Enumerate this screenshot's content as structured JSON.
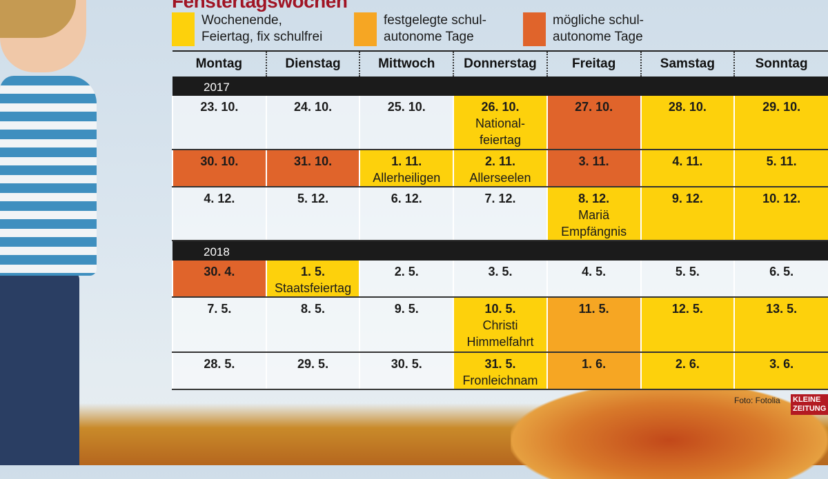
{
  "title": "Fenstertagswochen",
  "legend": [
    {
      "label": "Wochenende,\nFeiertag, fix schulfrei",
      "color": "#fdd10c"
    },
    {
      "label": "festgelegte schul-\nautonome Tage",
      "color": "#f6a623"
    },
    {
      "label": "mögliche schul-\nautonome Tage",
      "color": "#e0642b"
    }
  ],
  "days": [
    "Montag",
    "Dienstag",
    "Mittwoch",
    "Donnerstag",
    "Freitag",
    "Samstag",
    "Sonntag"
  ],
  "years": [
    {
      "year": "2017",
      "weeks": [
        [
          {
            "d": "23. 10."
          },
          {
            "d": "24. 10."
          },
          {
            "d": "25. 10."
          },
          {
            "d": "26. 10.",
            "note": "National-\nfeiertag",
            "c": "y"
          },
          {
            "d": "27. 10.",
            "c": "d"
          },
          {
            "d": "28. 10.",
            "c": "y"
          },
          {
            "d": "29. 10.",
            "c": "y"
          }
        ],
        [
          {
            "d": "30. 10.",
            "c": "d"
          },
          {
            "d": "31. 10.",
            "c": "d"
          },
          {
            "d": "1. 11.",
            "note": "Allerheiligen",
            "c": "y"
          },
          {
            "d": "2. 11.",
            "note": "Allerseelen",
            "c": "y"
          },
          {
            "d": "3. 11.",
            "c": "d"
          },
          {
            "d": "4. 11.",
            "c": "y"
          },
          {
            "d": "5. 11.",
            "c": "y"
          }
        ],
        [
          {
            "d": "4. 12."
          },
          {
            "d": "5. 12."
          },
          {
            "d": "6. 12."
          },
          {
            "d": "7. 12."
          },
          {
            "d": "8. 12.",
            "note": "Mariä\nEmpfängnis",
            "c": "y"
          },
          {
            "d": "9. 12.",
            "c": "y"
          },
          {
            "d": "10. 12.",
            "c": "y"
          }
        ]
      ]
    },
    {
      "year": "2018",
      "weeks": [
        [
          {
            "d": "30. 4.",
            "c": "d"
          },
          {
            "d": "1. 5.",
            "note": "Staatsfeiertag",
            "c": "y"
          },
          {
            "d": "2. 5."
          },
          {
            "d": "3. 5."
          },
          {
            "d": "4. 5."
          },
          {
            "d": "5. 5."
          },
          {
            "d": "6. 5."
          }
        ],
        [
          {
            "d": "7. 5."
          },
          {
            "d": "8. 5."
          },
          {
            "d": "9. 5."
          },
          {
            "d": "10. 5.",
            "note": "Christi\nHimmelfahrt",
            "c": "y"
          },
          {
            "d": "11. 5.",
            "c": "o"
          },
          {
            "d": "12. 5.",
            "c": "y"
          },
          {
            "d": "13. 5.",
            "c": "y"
          }
        ],
        [
          {
            "d": "28. 5."
          },
          {
            "d": "29. 5."
          },
          {
            "d": "30. 5."
          },
          {
            "d": "31. 5.",
            "note": "Fronleichnam",
            "c": "y"
          },
          {
            "d": "1. 6.",
            "c": "o"
          },
          {
            "d": "2. 6.",
            "c": "y"
          },
          {
            "d": "3. 6.",
            "c": "y"
          }
        ]
      ]
    }
  ],
  "credit": "Foto: Fotolia",
  "logo": "KLEINE ZEITUNG"
}
